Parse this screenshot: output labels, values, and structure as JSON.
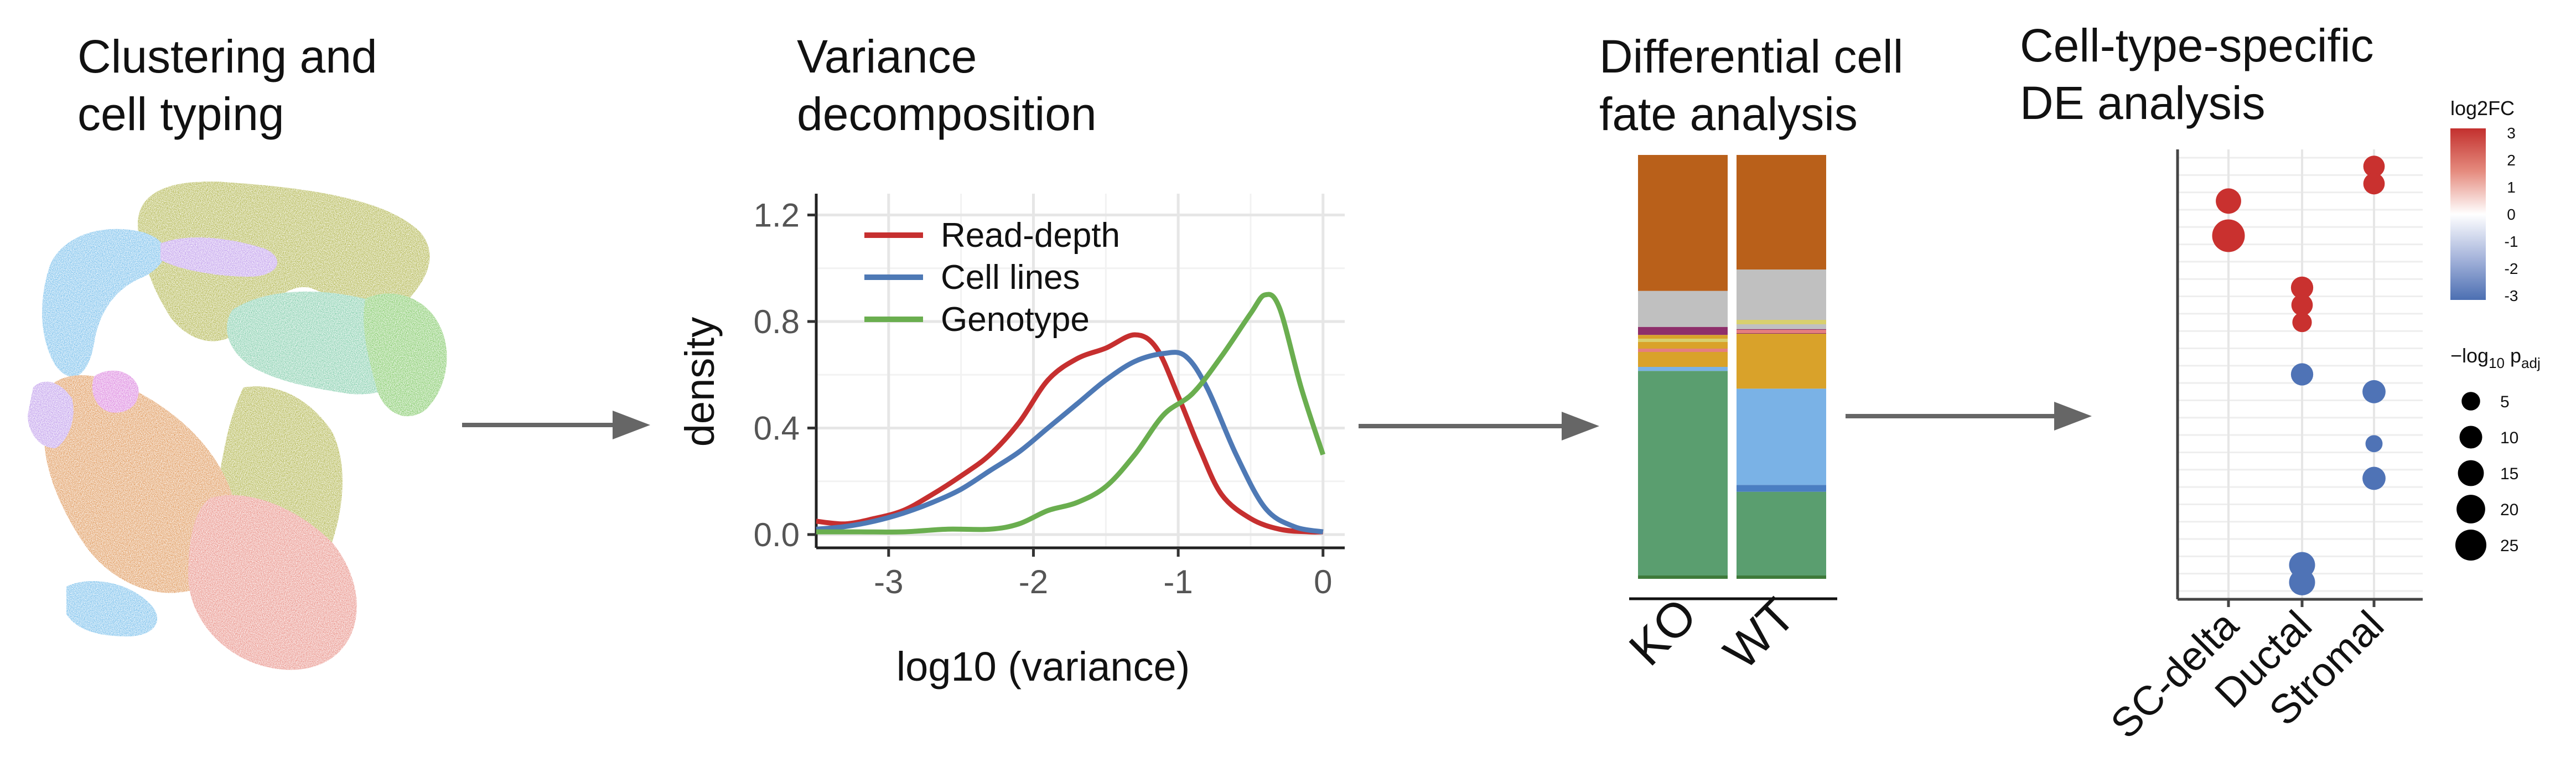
{
  "stages": {
    "clustering": {
      "title_line1": "Clustering and",
      "title_line2": "cell typing"
    },
    "variance": {
      "title_line1": "Variance",
      "title_line2": "decomposition"
    },
    "fate": {
      "title_line1": "Differential cell",
      "title_line2": "fate analysis"
    },
    "de": {
      "title_line1": "Cell-type-specific",
      "title_line2": "DE analysis"
    }
  },
  "chart_data": [
    {
      "type": "line",
      "xlabel": "log10 (variance)",
      "ylabel": "density",
      "xlim": [
        -3.5,
        0.15
      ],
      "ylim": [
        -0.05,
        1.28
      ],
      "x_ticks": [
        -3,
        -2,
        -1,
        0
      ],
      "x_tick_labels": [
        "-3",
        "-2",
        "-1",
        "0"
      ],
      "y_ticks": [
        0.0,
        0.4,
        0.8,
        1.2
      ],
      "y_tick_labels": [
        "0.0",
        "0.4",
        "0.8",
        "1.2"
      ],
      "grid": true,
      "legend_position": "top-left",
      "series": [
        {
          "name": "Read-depth",
          "color": "#c62f2f",
          "x": [
            -3.5,
            -3.3,
            -3.1,
            -2.9,
            -2.7,
            -2.5,
            -2.3,
            -2.1,
            -1.9,
            -1.7,
            -1.5,
            -1.3,
            -1.15,
            -1.0,
            -0.85,
            -0.7,
            -0.5,
            -0.3,
            -0.1,
            0.0
          ],
          "y": [
            0.05,
            0.04,
            0.06,
            0.09,
            0.15,
            0.22,
            0.3,
            0.42,
            0.58,
            0.66,
            0.7,
            0.75,
            0.7,
            0.52,
            0.32,
            0.15,
            0.06,
            0.02,
            0.01,
            0.01
          ]
        },
        {
          "name": "Cell lines",
          "color": "#4e79b5",
          "x": [
            -3.5,
            -3.3,
            -3.1,
            -2.9,
            -2.7,
            -2.5,
            -2.3,
            -2.1,
            -1.9,
            -1.7,
            -1.5,
            -1.3,
            -1.1,
            -0.95,
            -0.8,
            -0.6,
            -0.4,
            -0.2,
            0.0
          ],
          "y": [
            0.02,
            0.03,
            0.05,
            0.08,
            0.12,
            0.17,
            0.24,
            0.31,
            0.4,
            0.49,
            0.58,
            0.65,
            0.68,
            0.67,
            0.55,
            0.3,
            0.1,
            0.03,
            0.01
          ]
        },
        {
          "name": "Genotype",
          "color": "#6aae4f",
          "x": [
            -3.5,
            -3.2,
            -2.9,
            -2.6,
            -2.3,
            -2.1,
            -1.9,
            -1.7,
            -1.5,
            -1.3,
            -1.1,
            -0.9,
            -0.7,
            -0.5,
            -0.4,
            -0.3,
            -0.15,
            0.0
          ],
          "y": [
            0.01,
            0.01,
            0.01,
            0.02,
            0.02,
            0.04,
            0.09,
            0.12,
            0.18,
            0.3,
            0.45,
            0.53,
            0.67,
            0.83,
            0.9,
            0.85,
            0.55,
            0.3
          ]
        }
      ]
    },
    {
      "type": "bar",
      "stacked": true,
      "categories": [
        "KO",
        "WT"
      ],
      "series": [
        {
          "color": "#5a9e6f",
          "values": [
            0.52,
            0.19
          ]
        },
        {
          "color": "#4a7ec2",
          "values": [
            0.0,
            0.015
          ]
        },
        {
          "color": "#7ab2e6",
          "values": [
            0.01,
            0.21
          ]
        },
        {
          "color": "#d9a22a",
          "values": [
            0.08,
            0.12
          ]
        },
        {
          "color": "#8e2f6b",
          "values": [
            0.02,
            0.01
          ]
        },
        {
          "color": "#c0c0c0",
          "values": [
            0.09,
            0.13
          ]
        },
        {
          "color": "#b9601a",
          "values": [
            0.34,
            0.25
          ]
        }
      ],
      "band_colors": [
        "#3e7a3a",
        "#e57f7f",
        "#d8cf6e"
      ]
    },
    {
      "type": "scatter",
      "categories": [
        "SC-delta",
        "Ductal",
        "Stromal"
      ],
      "color_legend_title": "log2FC",
      "color_ticks": [
        "3",
        "2",
        "1",
        "0",
        "-1",
        "-2",
        "-3"
      ],
      "size_legend_title_prefix": "−log",
      "size_legend_title_sub1": "10",
      "size_legend_title_mid": " p",
      "size_legend_title_sub2": "adj",
      "size_values": [
        5,
        10,
        15,
        20,
        25
      ],
      "size_labels": [
        "5",
        "10",
        "15",
        "20",
        "25"
      ],
      "points": [
        {
          "cat": 0,
          "row": 2,
          "log2fc": 2.8,
          "size": 12
        },
        {
          "cat": 0,
          "row": 4,
          "log2fc": 2.8,
          "size": 25
        },
        {
          "cat": 1,
          "row": 7,
          "log2fc": 2.6,
          "size": 8
        },
        {
          "cat": 1,
          "row": 8,
          "log2fc": 2.6,
          "size": 7
        },
        {
          "cat": 1,
          "row": 9,
          "log2fc": 2.6,
          "size": 5
        },
        {
          "cat": 1,
          "row": 12,
          "log2fc": -2.6,
          "size": 8
        },
        {
          "cat": 2,
          "row": 0,
          "log2fc": 2.7,
          "size": 7
        },
        {
          "cat": 2,
          "row": 1,
          "log2fc": 2.7,
          "size": 7
        },
        {
          "cat": 2,
          "row": 13,
          "log2fc": -2.6,
          "size": 9
        },
        {
          "cat": 2,
          "row": 16,
          "log2fc": -2.6,
          "size": 3
        },
        {
          "cat": 2,
          "row": 18,
          "log2fc": -2.6,
          "size": 9
        },
        {
          "cat": 1,
          "row": 23,
          "log2fc": -2.6,
          "size": 13
        },
        {
          "cat": 1,
          "row": 24,
          "log2fc": -2.6,
          "size": 13
        }
      ],
      "n_rows": 25
    }
  ],
  "colors": {
    "arrow": "#666666",
    "umap_clusters": [
      "#a3a82e",
      "#5fb3e8",
      "#b48be8",
      "#6cc49c",
      "#6abf4b",
      "#e47b70",
      "#d9843a",
      "#d46bd8"
    ]
  }
}
